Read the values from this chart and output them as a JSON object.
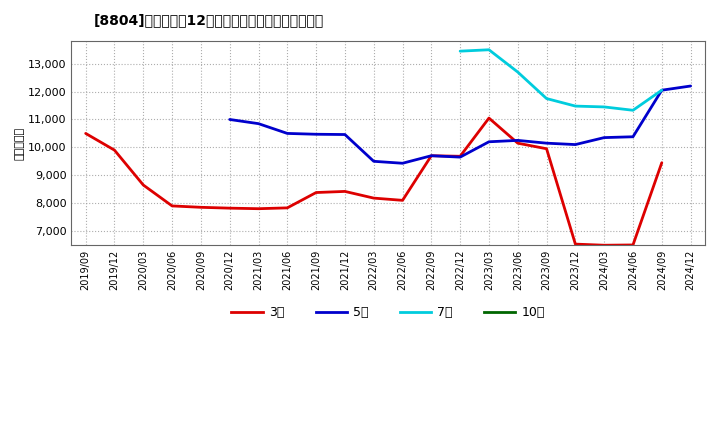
{
  "title": "[8804]　経常利益12か月移動合計の標準偏差の推移",
  "ylabel": "（百万円）",
  "background_color": "#ffffff",
  "plot_bg_color": "#ffffff",
  "grid_color": "#999999",
  "ylim": [
    6500,
    13800
  ],
  "yticks": [
    7000,
    8000,
    9000,
    10000,
    11000,
    12000,
    13000
  ],
  "series": {
    "3年": {
      "color": "#dd0000",
      "data": [
        [
          "2019/09",
          10500
        ],
        [
          "2019/12",
          9900
        ],
        [
          "2020/03",
          8650
        ],
        [
          "2020/06",
          7900
        ],
        [
          "2020/09",
          7850
        ],
        [
          "2020/12",
          7820
        ],
        [
          "2021/03",
          7800
        ],
        [
          "2021/06",
          7830
        ],
        [
          "2021/09",
          8380
        ],
        [
          "2021/12",
          8420
        ],
        [
          "2022/03",
          8180
        ],
        [
          "2022/06",
          8100
        ],
        [
          "2022/09",
          9700
        ],
        [
          "2022/12",
          9680
        ],
        [
          "2023/03",
          11050
        ],
        [
          "2023/06",
          10150
        ],
        [
          "2023/09",
          9950
        ],
        [
          "2023/12",
          6530
        ],
        [
          "2024/03",
          6490
        ],
        [
          "2024/06",
          6500
        ],
        [
          "2024/09",
          9450
        ],
        [
          "2024/12",
          null
        ]
      ]
    },
    "5年": {
      "color": "#0000cc",
      "data": [
        [
          "2019/09",
          null
        ],
        [
          "2019/12",
          null
        ],
        [
          "2020/03",
          null
        ],
        [
          "2020/06",
          null
        ],
        [
          "2020/09",
          null
        ],
        [
          "2020/12",
          11000
        ],
        [
          "2021/03",
          10850
        ],
        [
          "2021/06",
          10500
        ],
        [
          "2021/09",
          10470
        ],
        [
          "2021/12",
          10460
        ],
        [
          "2022/03",
          9500
        ],
        [
          "2022/06",
          9430
        ],
        [
          "2022/09",
          9700
        ],
        [
          "2022/12",
          9650
        ],
        [
          "2023/03",
          10200
        ],
        [
          "2023/06",
          10250
        ],
        [
          "2023/09",
          10150
        ],
        [
          "2023/12",
          10100
        ],
        [
          "2024/03",
          10350
        ],
        [
          "2024/06",
          10380
        ],
        [
          "2024/09",
          12050
        ],
        [
          "2024/12",
          12200
        ]
      ]
    },
    "7年": {
      "color": "#00ccdd",
      "data": [
        [
          "2019/09",
          null
        ],
        [
          "2019/12",
          null
        ],
        [
          "2020/03",
          null
        ],
        [
          "2020/06",
          null
        ],
        [
          "2020/09",
          null
        ],
        [
          "2020/12",
          null
        ],
        [
          "2021/03",
          null
        ],
        [
          "2021/06",
          null
        ],
        [
          "2021/09",
          null
        ],
        [
          "2021/12",
          null
        ],
        [
          "2022/03",
          null
        ],
        [
          "2022/06",
          null
        ],
        [
          "2022/09",
          null
        ],
        [
          "2022/12",
          13450
        ],
        [
          "2023/03",
          13500
        ],
        [
          "2023/06",
          12700
        ],
        [
          "2023/09",
          11750
        ],
        [
          "2023/12",
          11480
        ],
        [
          "2024/03",
          11450
        ],
        [
          "2024/06",
          11330
        ],
        [
          "2024/09",
          12050
        ],
        [
          "2024/12",
          null
        ]
      ]
    },
    "10年": {
      "color": "#006600",
      "data": [
        [
          "2019/09",
          null
        ],
        [
          "2019/12",
          null
        ],
        [
          "2020/03",
          null
        ],
        [
          "2020/06",
          null
        ],
        [
          "2020/09",
          null
        ],
        [
          "2020/12",
          null
        ],
        [
          "2021/03",
          null
        ],
        [
          "2021/06",
          null
        ],
        [
          "2021/09",
          null
        ],
        [
          "2021/12",
          null
        ],
        [
          "2022/03",
          null
        ],
        [
          "2022/06",
          null
        ],
        [
          "2022/09",
          null
        ],
        [
          "2022/12",
          null
        ],
        [
          "2023/03",
          null
        ],
        [
          "2023/06",
          null
        ],
        [
          "2023/09",
          null
        ],
        [
          "2023/12",
          null
        ],
        [
          "2024/03",
          null
        ],
        [
          "2024/06",
          null
        ],
        [
          "2024/09",
          null
        ],
        [
          "2024/12",
          null
        ]
      ]
    }
  },
  "xtick_labels": [
    "2019/09",
    "2019/12",
    "2020/03",
    "2020/06",
    "2020/09",
    "2020/12",
    "2021/03",
    "2021/06",
    "2021/09",
    "2021/12",
    "2022/03",
    "2022/06",
    "2022/09",
    "2022/12",
    "2023/03",
    "2023/06",
    "2023/09",
    "2023/12",
    "2024/03",
    "2024/06",
    "2024/09",
    "2024/12"
  ],
  "legend": {
    "3年": "#dd0000",
    "5年": "#0000cc",
    "7年": "#00ccdd",
    "10年": "#006600"
  }
}
